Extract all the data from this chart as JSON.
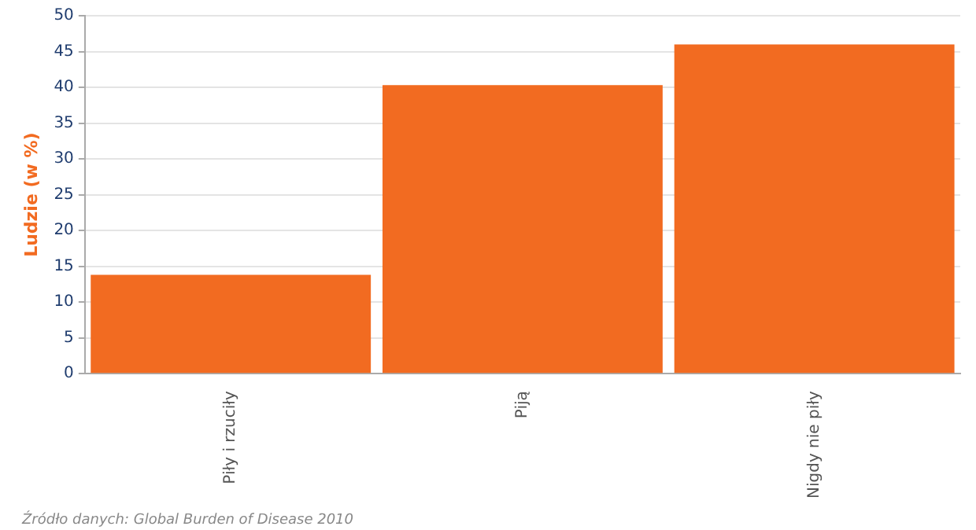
{
  "chart_data": {
    "type": "bar",
    "ylabel": "Ludzie (w %)",
    "categories": [
      "Piły i rzuciły",
      "Piją",
      "Nigdy nie piły"
    ],
    "values": [
      13.8,
      40.3,
      46
    ],
    "color": "#f26b21",
    "ylim": [
      0,
      50
    ],
    "yticks": [
      0,
      5,
      10,
      15,
      20,
      25,
      30,
      35,
      40,
      45,
      50
    ],
    "grid": "y",
    "legend": false,
    "annotations": [
      "Źródło danych: Global Burden of Disease 2010"
    ]
  }
}
